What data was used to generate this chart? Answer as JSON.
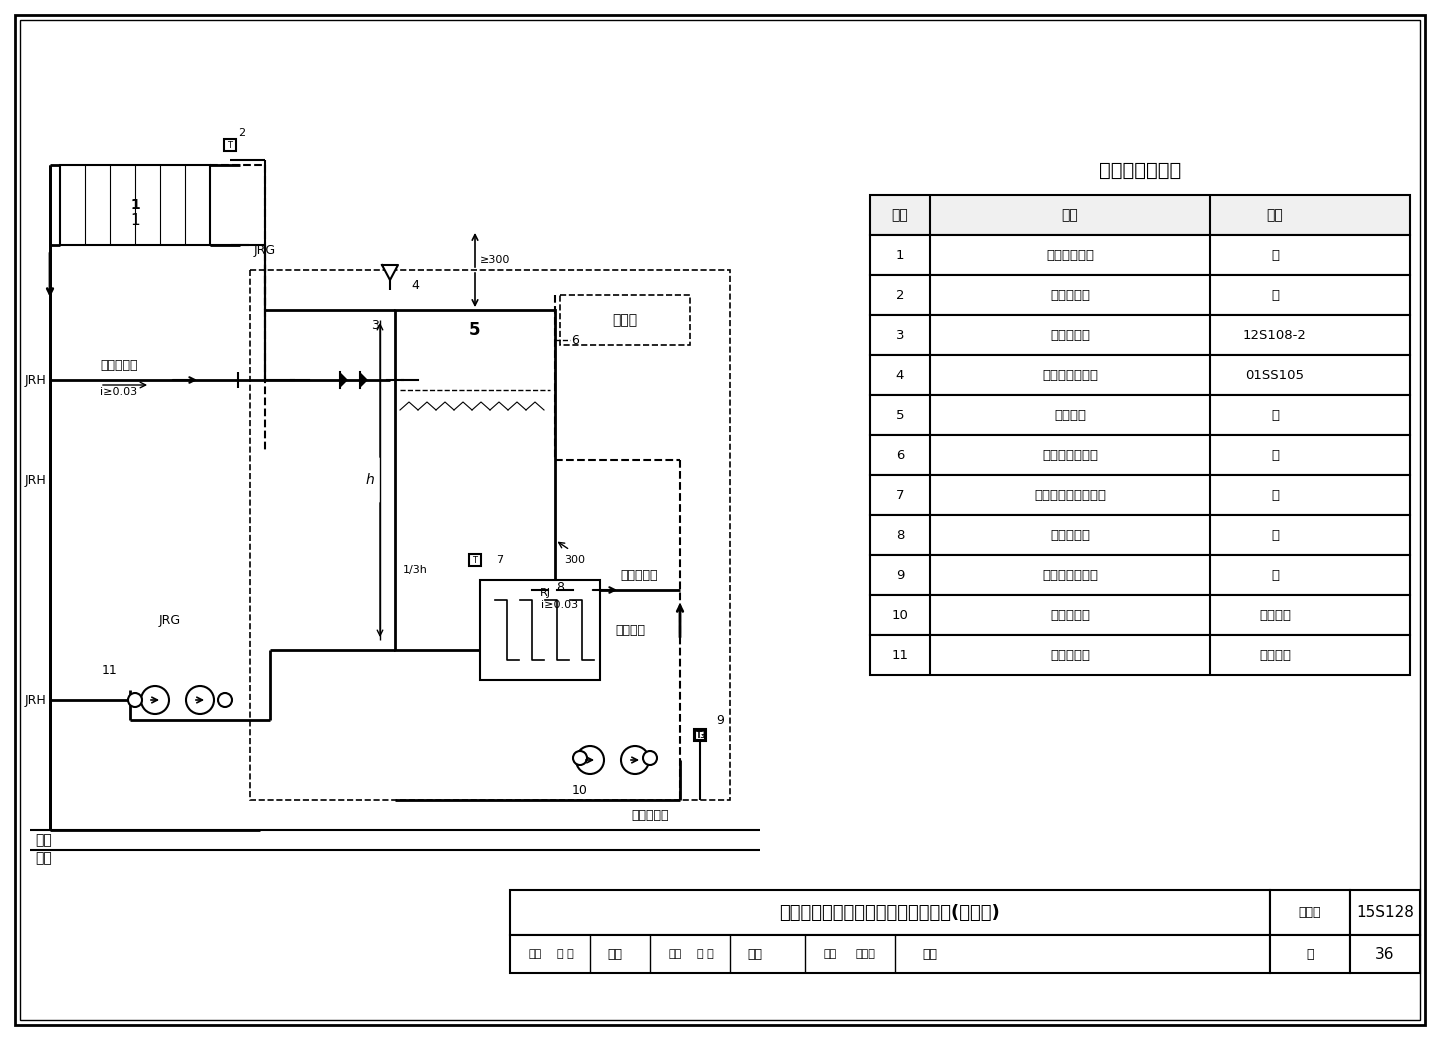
{
  "title": "强制循环单水箱直接加热系统示意图(恒水位)",
  "atlas_no": "15S128",
  "page": "36",
  "background": "#ffffff",
  "border_color": "#000000",
  "table_title": "主要设备材料表",
  "table_headers": [
    "序号",
    "名称",
    "备注"
  ],
  "table_rows": [
    [
      "1",
      "太阳能集热器",
      "－"
    ],
    [
      "2",
      "温度传感器",
      "－"
    ],
    [
      "3",
      "真空破坏器",
      "12S108-2"
    ],
    [
      "4",
      "液压水位控制阀",
      "01SS105"
    ],
    [
      "5",
      "储热水箱",
      "－"
    ],
    [
      "6",
      "水箱液位传感器",
      "－"
    ],
    [
      "7",
      "储热水箱温度传感器",
      "－"
    ],
    [
      "8",
      "热媒电动阀",
      "－"
    ],
    [
      "9",
      "回水温度传感器",
      "－"
    ],
    [
      "10",
      "回水循环泵",
      "一用一备"
    ],
    [
      "11",
      "集热循环泵",
      "一用一备"
    ]
  ],
  "bottom_labels": {
    "shen_he": "审核",
    "name1": "张 磊",
    "sig1": "张磊",
    "jiao_dui": "校对",
    "name2": "张 哲",
    "sig2": "张哲",
    "she_ji": "设计",
    "name3": "王岩松",
    "sig3": "玩松",
    "tu_ji_hao": "图集号",
    "ye": "页"
  },
  "labels": {
    "leng_shui": "冷水供水管",
    "re_shui_gong": "热水供水管",
    "re_shui_hui": "热水回水管",
    "fu_zhu": "辅助热源",
    "kong_zhi_qi": "控制器",
    "jrg": "JRG",
    "jrh": "JRH",
    "rj": "RJ",
    "wu_ding": "屋顶",
    "shi_nei": "室内",
    "i_0_03_left": "i≥0.03",
    "i_0_03_right": "i≥0.03",
    "h_label": "h",
    "one_third_h": "1/3h",
    "300_top": "≥300",
    "300_mid": "300"
  }
}
